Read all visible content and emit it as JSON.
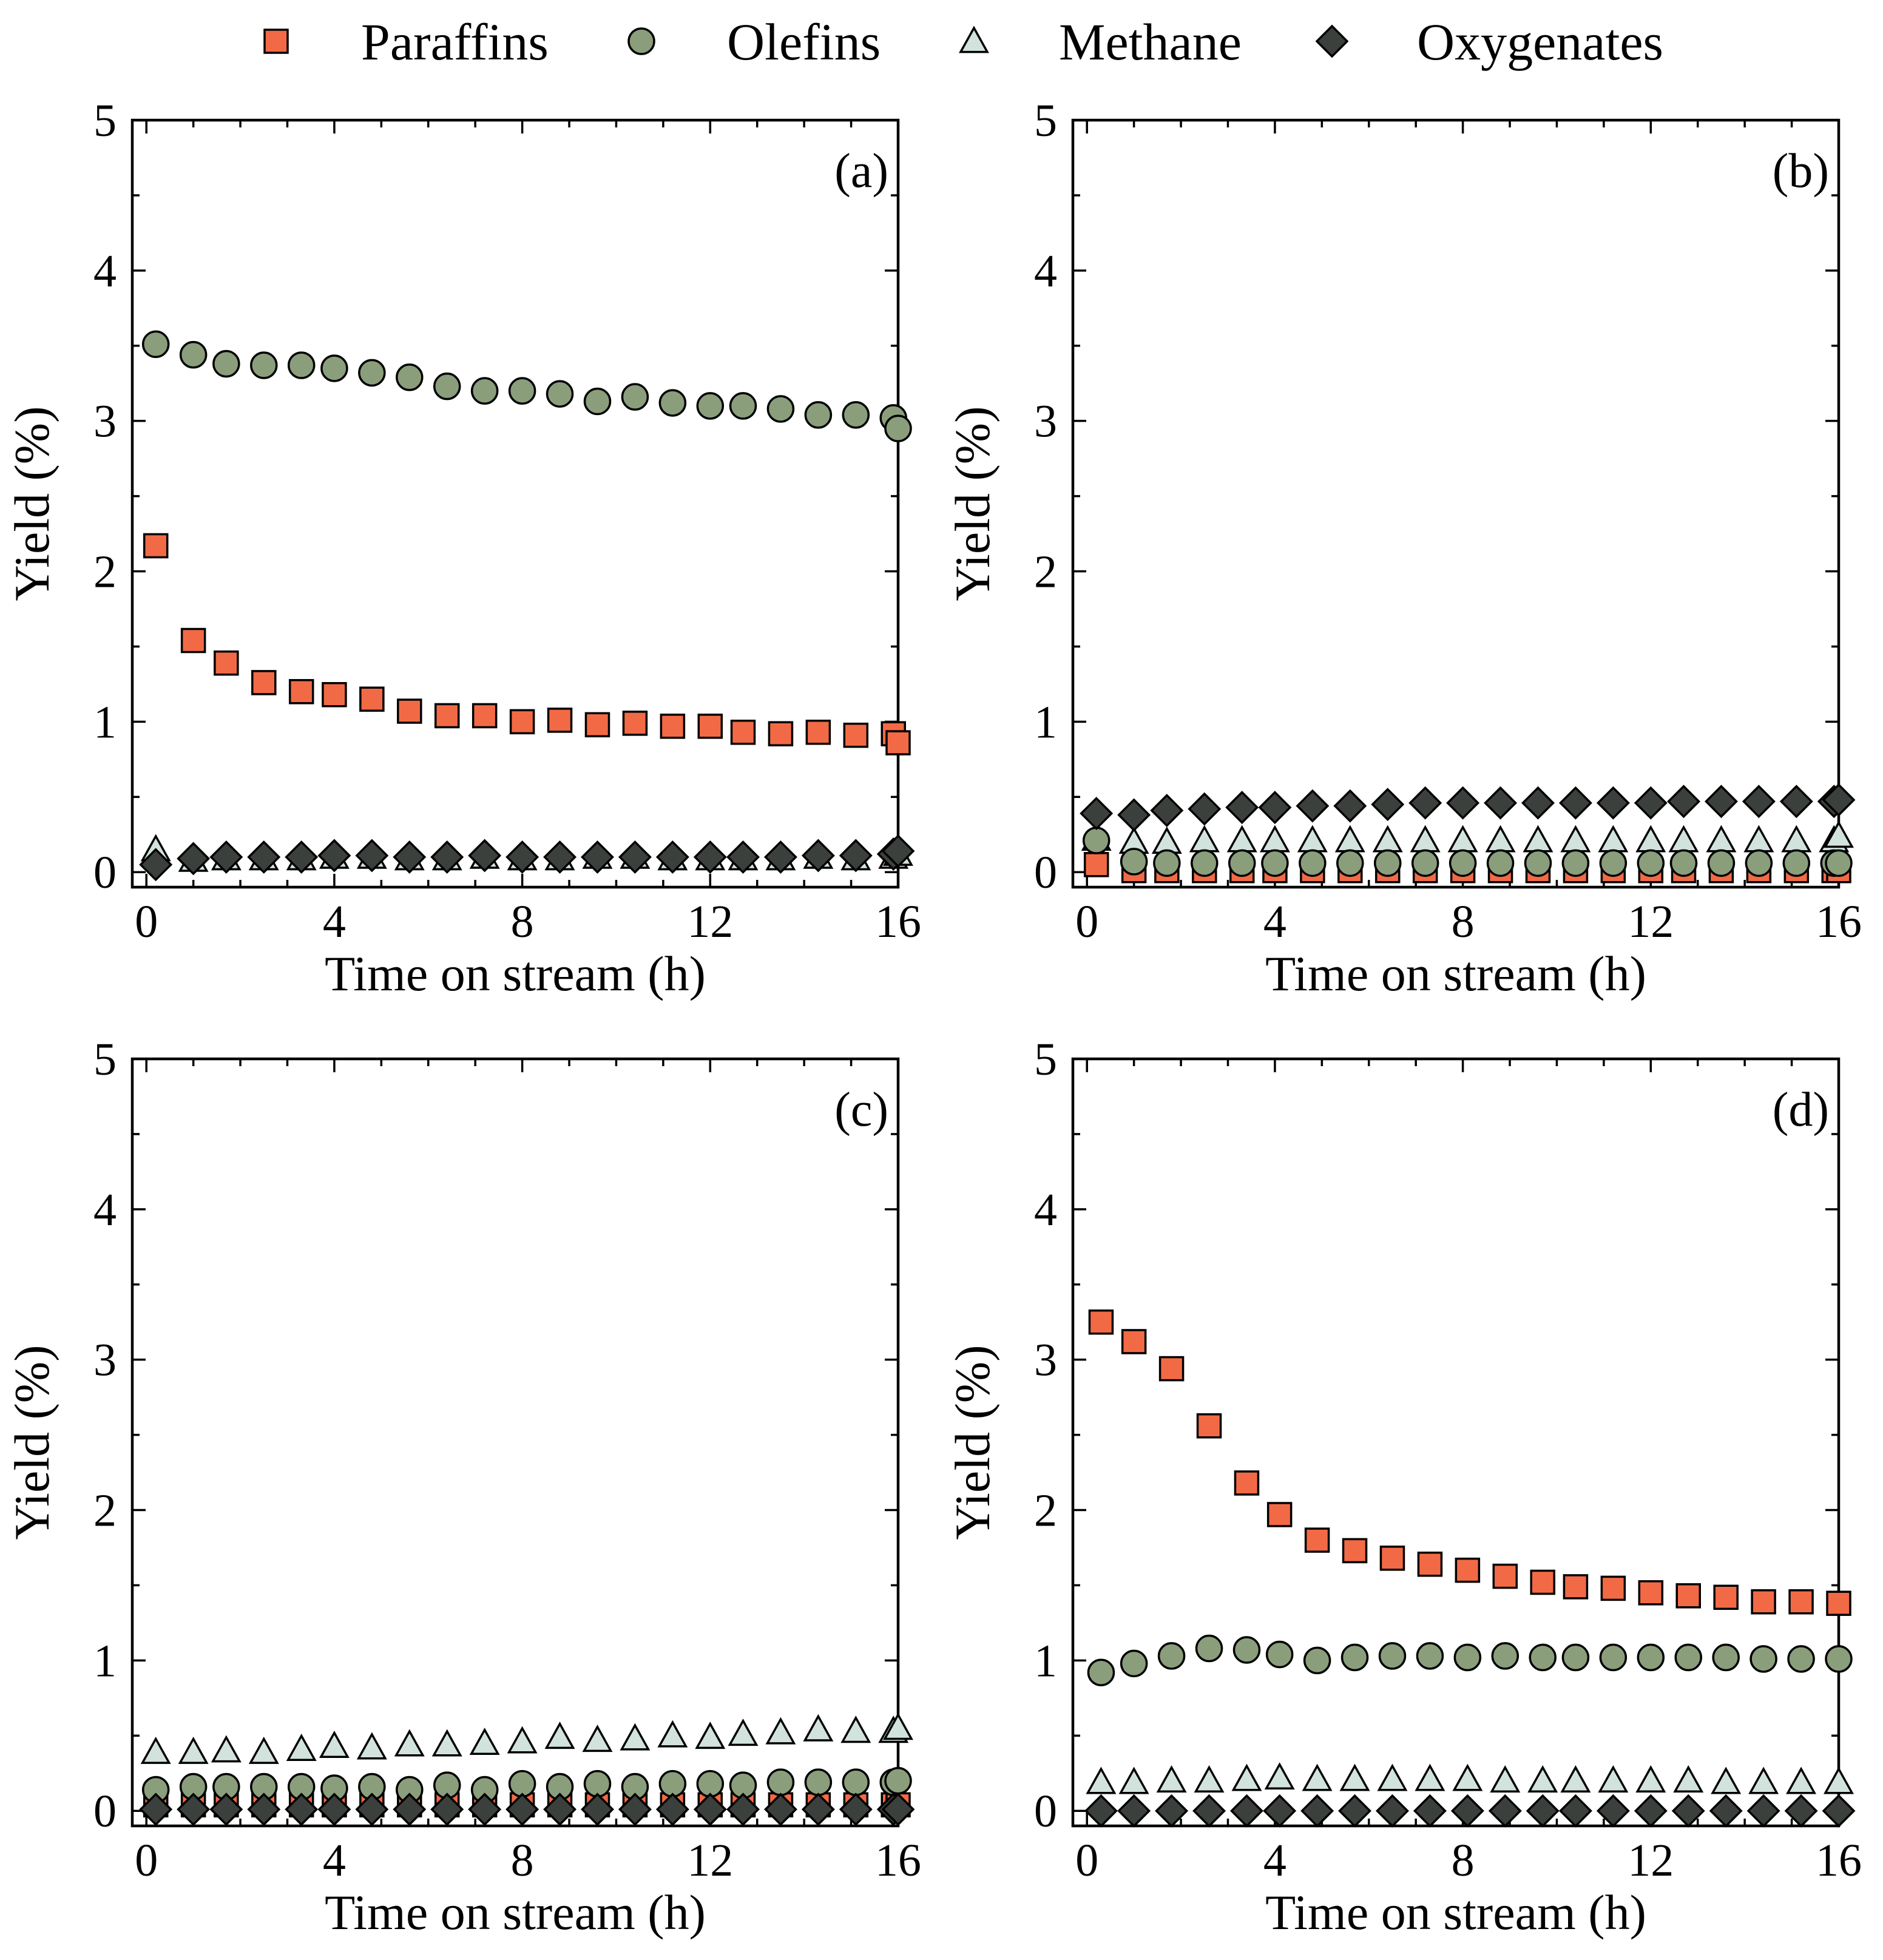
{
  "chart_data": {
    "type": "scatter",
    "legend": {
      "placement": "top",
      "entries": [
        {
          "key": "paraffins",
          "label": "Paraffins",
          "marker": "square",
          "color": "#f26a45"
        },
        {
          "key": "olefins",
          "label": "Olefins",
          "marker": "circle",
          "color": "#8a9e7c"
        },
        {
          "key": "methane",
          "label": "Methane",
          "marker": "triangle",
          "color": "#d2e3de"
        },
        {
          "key": "oxygenates",
          "label": "Oxygenates",
          "marker": "diamond",
          "color": "#3c403c"
        }
      ]
    },
    "xlabel": "Time on stream (h)",
    "ylabel": "Yield (%)",
    "xlim": [
      -0.3,
      16
    ],
    "ylim": [
      -0.1,
      5
    ],
    "xticks": [
      0,
      4,
      8,
      12,
      16
    ],
    "yticks": [
      0,
      1,
      2,
      3,
      4,
      5
    ],
    "panels": [
      {
        "label": "(a)",
        "series": {
          "paraffins": {
            "x": [
              0.2,
              1.0,
              1.7,
              2.5,
              3.3,
              4.0,
              4.8,
              5.6,
              6.4,
              7.2,
              8.0,
              8.8,
              9.6,
              10.4,
              11.2,
              12.0,
              12.7,
              13.5,
              14.3,
              15.1,
              15.9,
              16.0
            ],
            "y": [
              2.17,
              1.54,
              1.39,
              1.26,
              1.2,
              1.18,
              1.15,
              1.07,
              1.04,
              1.04,
              1.0,
              1.01,
              0.98,
              0.99,
              0.97,
              0.97,
              0.93,
              0.92,
              0.93,
              0.91,
              0.92,
              0.86
            ]
          },
          "olefins": {
            "x": [
              0.2,
              1.0,
              1.7,
              2.5,
              3.3,
              4.0,
              4.8,
              5.6,
              6.4,
              7.2,
              8.0,
              8.8,
              9.6,
              10.4,
              11.2,
              12.0,
              12.7,
              13.5,
              14.3,
              15.1,
              15.9,
              16.0
            ],
            "y": [
              3.51,
              3.44,
              3.38,
              3.37,
              3.37,
              3.35,
              3.32,
              3.29,
              3.23,
              3.2,
              3.2,
              3.18,
              3.13,
              3.16,
              3.12,
              3.1,
              3.1,
              3.08,
              3.04,
              3.04,
              3.02,
              2.95
            ]
          },
          "methane": {
            "x": [
              0.2,
              1.0,
              1.7,
              2.5,
              3.3,
              4.0,
              4.8,
              5.6,
              6.4,
              7.2,
              8.0,
              8.8,
              9.6,
              10.4,
              11.2,
              12.0,
              12.7,
              13.5,
              14.3,
              15.1,
              15.9,
              16.0
            ],
            "y": [
              0.15,
              0.08,
              0.09,
              0.09,
              0.09,
              0.1,
              0.1,
              0.09,
              0.09,
              0.1,
              0.09,
              0.09,
              0.1,
              0.1,
              0.09,
              0.09,
              0.09,
              0.09,
              0.1,
              0.09,
              0.1,
              0.12
            ]
          },
          "oxygenates": {
            "x": [
              0.2,
              1.0,
              1.7,
              2.5,
              3.3,
              4.0,
              4.8,
              5.6,
              6.4,
              7.2,
              8.0,
              8.8,
              9.6,
              10.4,
              11.2,
              12.0,
              12.7,
              13.5,
              14.3,
              15.1,
              15.9,
              16.0
            ],
            "y": [
              0.05,
              0.09,
              0.1,
              0.1,
              0.1,
              0.11,
              0.11,
              0.1,
              0.1,
              0.11,
              0.1,
              0.1,
              0.1,
              0.1,
              0.1,
              0.1,
              0.1,
              0.1,
              0.11,
              0.11,
              0.12,
              0.14
            ]
          }
        }
      },
      {
        "label": "(b)",
        "series": {
          "paraffins": {
            "x": [
              0.2,
              1.0,
              1.7,
              2.5,
              3.3,
              4.0,
              4.8,
              5.6,
              6.4,
              7.2,
              8.0,
              8.8,
              9.6,
              10.4,
              11.2,
              12.0,
              12.7,
              13.5,
              14.3,
              15.1,
              15.9,
              16.0
            ],
            "y": [
              0.05,
              0.01,
              0.01,
              0.01,
              0.01,
              0.01,
              0.01,
              0.01,
              0.01,
              0.01,
              0.01,
              0.01,
              0.01,
              0.01,
              0.01,
              0.01,
              0.01,
              0.01,
              0.01,
              0.01,
              0.01,
              0.01
            ]
          },
          "olefins": {
            "x": [
              0.2,
              1.0,
              1.7,
              2.5,
              3.3,
              4.0,
              4.8,
              5.6,
              6.4,
              7.2,
              8.0,
              8.8,
              9.6,
              10.4,
              11.2,
              12.0,
              12.7,
              13.5,
              14.3,
              15.1,
              15.9,
              16.0
            ],
            "y": [
              0.21,
              0.07,
              0.06,
              0.06,
              0.06,
              0.06,
              0.06,
              0.06,
              0.06,
              0.06,
              0.06,
              0.06,
              0.06,
              0.06,
              0.06,
              0.06,
              0.06,
              0.06,
              0.06,
              0.06,
              0.06,
              0.06
            ]
          },
          "methane": {
            "x": [
              0.2,
              1.0,
              1.7,
              2.5,
              3.3,
              4.0,
              4.8,
              5.6,
              6.4,
              7.2,
              8.0,
              8.8,
              9.6,
              10.4,
              11.2,
              12.0,
              12.7,
              13.5,
              14.3,
              15.1,
              15.9,
              16.0
            ],
            "y": [
              0.22,
              0.2,
              0.2,
              0.21,
              0.21,
              0.21,
              0.21,
              0.21,
              0.21,
              0.21,
              0.21,
              0.21,
              0.21,
              0.21,
              0.21,
              0.21,
              0.21,
              0.21,
              0.21,
              0.21,
              0.21,
              0.24
            ]
          },
          "oxygenates": {
            "x": [
              0.2,
              1.0,
              1.7,
              2.5,
              3.3,
              4.0,
              4.8,
              5.6,
              6.4,
              7.2,
              8.0,
              8.8,
              9.6,
              10.4,
              11.2,
              12.0,
              12.7,
              13.5,
              14.3,
              15.1,
              15.9,
              16.0
            ],
            "y": [
              0.39,
              0.38,
              0.41,
              0.42,
              0.43,
              0.43,
              0.44,
              0.44,
              0.45,
              0.46,
              0.46,
              0.46,
              0.46,
              0.46,
              0.46,
              0.46,
              0.47,
              0.47,
              0.47,
              0.47,
              0.47,
              0.48
            ]
          }
        }
      },
      {
        "label": "(c)",
        "series": {
          "paraffins": {
            "x": [
              0.2,
              1.0,
              1.7,
              2.5,
              3.3,
              4.0,
              4.8,
              5.6,
              6.4,
              7.2,
              8.0,
              8.8,
              9.6,
              10.4,
              11.2,
              12.0,
              12.7,
              13.5,
              14.3,
              15.1,
              15.9,
              16.0
            ],
            "y": [
              0.04,
              0.04,
              0.04,
              0.04,
              0.04,
              0.04,
              0.04,
              0.04,
              0.04,
              0.04,
              0.04,
              0.04,
              0.04,
              0.04,
              0.04,
              0.04,
              0.04,
              0.04,
              0.04,
              0.04,
              0.04,
              0.04
            ]
          },
          "olefins": {
            "x": [
              0.2,
              1.0,
              1.7,
              2.5,
              3.3,
              4.0,
              4.8,
              5.6,
              6.4,
              7.2,
              8.0,
              8.8,
              9.6,
              10.4,
              11.2,
              12.0,
              12.7,
              13.5,
              14.3,
              15.1,
              15.9,
              16.0
            ],
            "y": [
              0.14,
              0.16,
              0.16,
              0.16,
              0.16,
              0.15,
              0.16,
              0.14,
              0.17,
              0.14,
              0.18,
              0.16,
              0.18,
              0.16,
              0.18,
              0.18,
              0.17,
              0.19,
              0.19,
              0.19,
              0.19,
              0.2
            ]
          },
          "methane": {
            "x": [
              0.2,
              1.0,
              1.7,
              2.5,
              3.3,
              4.0,
              4.8,
              5.6,
              6.4,
              7.2,
              8.0,
              8.8,
              9.6,
              10.4,
              11.2,
              12.0,
              12.7,
              13.5,
              14.3,
              15.1,
              15.9,
              16.0
            ],
            "y": [
              0.39,
              0.39,
              0.4,
              0.39,
              0.41,
              0.43,
              0.42,
              0.44,
              0.44,
              0.45,
              0.46,
              0.49,
              0.47,
              0.48,
              0.5,
              0.49,
              0.51,
              0.52,
              0.54,
              0.53,
              0.53,
              0.55
            ]
          },
          "oxygenates": {
            "x": [
              0.2,
              1.0,
              1.7,
              2.5,
              3.3,
              4.0,
              4.8,
              5.6,
              6.4,
              7.2,
              8.0,
              8.8,
              9.6,
              10.4,
              11.2,
              12.0,
              12.7,
              13.5,
              14.3,
              15.1,
              15.9,
              16.0
            ],
            "y": [
              0.01,
              0.01,
              0.01,
              0.01,
              0.01,
              0.01,
              0.01,
              0.01,
              0.01,
              0.01,
              0.01,
              0.01,
              0.01,
              0.01,
              0.01,
              0.01,
              0.01,
              0.01,
              0.01,
              0.01,
              0.01,
              0.01
            ]
          }
        }
      },
      {
        "label": "(d)",
        "series": {
          "paraffins": {
            "x": [
              0.3,
              1.0,
              1.8,
              2.6,
              3.4,
              4.1,
              4.9,
              5.7,
              6.5,
              7.3,
              8.1,
              8.9,
              9.7,
              10.4,
              11.2,
              12.0,
              12.8,
              13.6,
              14.4,
              15.2,
              16.0
            ],
            "y": [
              3.25,
              3.12,
              2.94,
              2.56,
              2.18,
              1.97,
              1.8,
              1.73,
              1.68,
              1.64,
              1.6,
              1.56,
              1.52,
              1.49,
              1.48,
              1.45,
              1.43,
              1.42,
              1.39,
              1.39,
              1.38
            ]
          },
          "olefins": {
            "x": [
              0.3,
              1.0,
              1.8,
              2.6,
              3.4,
              4.1,
              4.9,
              5.7,
              6.5,
              7.3,
              8.1,
              8.9,
              9.7,
              10.4,
              11.2,
              12.0,
              12.8,
              13.6,
              14.4,
              15.2,
              16.0
            ],
            "y": [
              0.92,
              0.98,
              1.03,
              1.08,
              1.07,
              1.04,
              1.0,
              1.02,
              1.03,
              1.03,
              1.02,
              1.03,
              1.02,
              1.02,
              1.02,
              1.02,
              1.02,
              1.02,
              1.01,
              1.01,
              1.01
            ]
          },
          "methane": {
            "x": [
              0.3,
              1.0,
              1.8,
              2.6,
              3.4,
              4.1,
              4.9,
              5.7,
              6.5,
              7.3,
              8.1,
              8.9,
              9.7,
              10.4,
              11.2,
              12.0,
              12.8,
              13.6,
              14.4,
              15.2,
              16.0
            ],
            "y": [
              0.19,
              0.19,
              0.2,
              0.2,
              0.21,
              0.22,
              0.21,
              0.21,
              0.21,
              0.21,
              0.21,
              0.2,
              0.2,
              0.2,
              0.2,
              0.2,
              0.2,
              0.19,
              0.19,
              0.19,
              0.19
            ]
          },
          "oxygenates": {
            "x": [
              0.3,
              1.0,
              1.8,
              2.6,
              3.4,
              4.1,
              4.9,
              5.7,
              6.5,
              7.3,
              8.1,
              8.9,
              9.7,
              10.4,
              11.2,
              12.0,
              12.8,
              13.6,
              14.4,
              15.2,
              16.0
            ],
            "y": [
              0.0,
              0.0,
              0.0,
              0.0,
              0.0,
              0.0,
              0.0,
              0.0,
              0.0,
              0.0,
              0.0,
              0.0,
              0.0,
              0.0,
              0.0,
              0.0,
              0.0,
              0.0,
              0.0,
              0.0,
              0.0
            ]
          }
        }
      }
    ]
  }
}
